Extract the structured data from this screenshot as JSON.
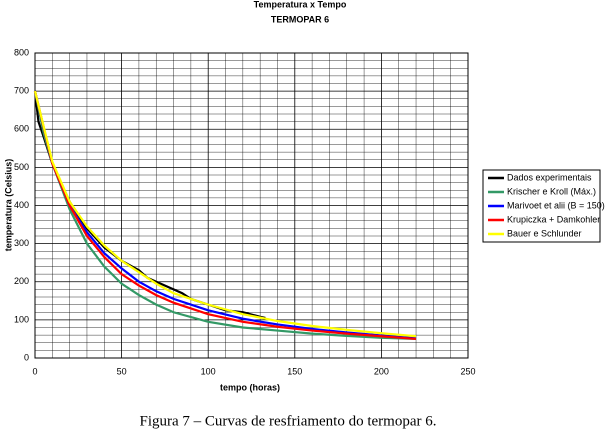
{
  "chart_data": {
    "type": "line",
    "title": "Temperatura x Tempo",
    "subtitle": "TERMOPAR 6",
    "xlabel": "tempo (horas)",
    "ylabel": "temperatura (Celsius)",
    "caption": "Figura 7 – Curvas de resfriamento do termopar 6.",
    "xlim": [
      0,
      250
    ],
    "xticks": [
      0,
      50,
      100,
      150,
      200,
      250
    ],
    "ylim": [
      0,
      800
    ],
    "yticks": [
      0,
      100,
      200,
      300,
      400,
      500,
      600,
      700,
      800
    ],
    "grid": true,
    "legend": "right",
    "series": [
      {
        "name": "Dados experimentais",
        "color": "#000000",
        "x": [
          0,
          2,
          5,
          10,
          20,
          30,
          40,
          50,
          60,
          65,
          70,
          80,
          85,
          90,
          100,
          110,
          120,
          130,
          133
        ],
        "values": [
          700,
          620,
          580,
          510,
          410,
          340,
          290,
          255,
          230,
          210,
          200,
          180,
          170,
          155,
          140,
          125,
          120,
          108,
          105
        ]
      },
      {
        "name": "Krischer e Kroll (Máx.)",
        "color": "#339966",
        "x": [
          0,
          5,
          10,
          20,
          30,
          40,
          50,
          60,
          70,
          80,
          100,
          120,
          140,
          160,
          180,
          200,
          220
        ],
        "values": [
          700,
          590,
          510,
          390,
          300,
          240,
          195,
          165,
          140,
          120,
          95,
          80,
          72,
          64,
          58,
          53,
          50
        ]
      },
      {
        "name": "Marivoet et alii (B = 150)",
        "color": "#0000ff",
        "x": [
          0,
          10,
          20,
          30,
          40,
          50,
          60,
          70,
          80,
          100,
          120,
          140,
          160,
          180,
          200,
          220
        ],
        "values": [
          700,
          510,
          400,
          330,
          275,
          235,
          200,
          175,
          155,
          125,
          103,
          88,
          76,
          67,
          59,
          52
        ]
      },
      {
        "name": "Krupiczka + Damkohler",
        "color": "#ff0000",
        "x": [
          0,
          10,
          20,
          30,
          40,
          50,
          60,
          70,
          80,
          100,
          120,
          140,
          160,
          180,
          200,
          220
        ],
        "values": [
          700,
          510,
          400,
          320,
          265,
          220,
          190,
          165,
          145,
          115,
          95,
          82,
          72,
          64,
          57,
          50
        ]
      },
      {
        "name": "Bauer e Schlunder",
        "color": "#ffff00",
        "x": [
          0,
          10,
          20,
          30,
          40,
          50,
          60,
          70,
          80,
          100,
          120,
          140,
          160,
          180,
          200,
          220
        ],
        "values": [
          700,
          515,
          410,
          345,
          295,
          255,
          225,
          195,
          170,
          140,
          115,
          97,
          84,
          74,
          65,
          57
        ]
      }
    ]
  }
}
